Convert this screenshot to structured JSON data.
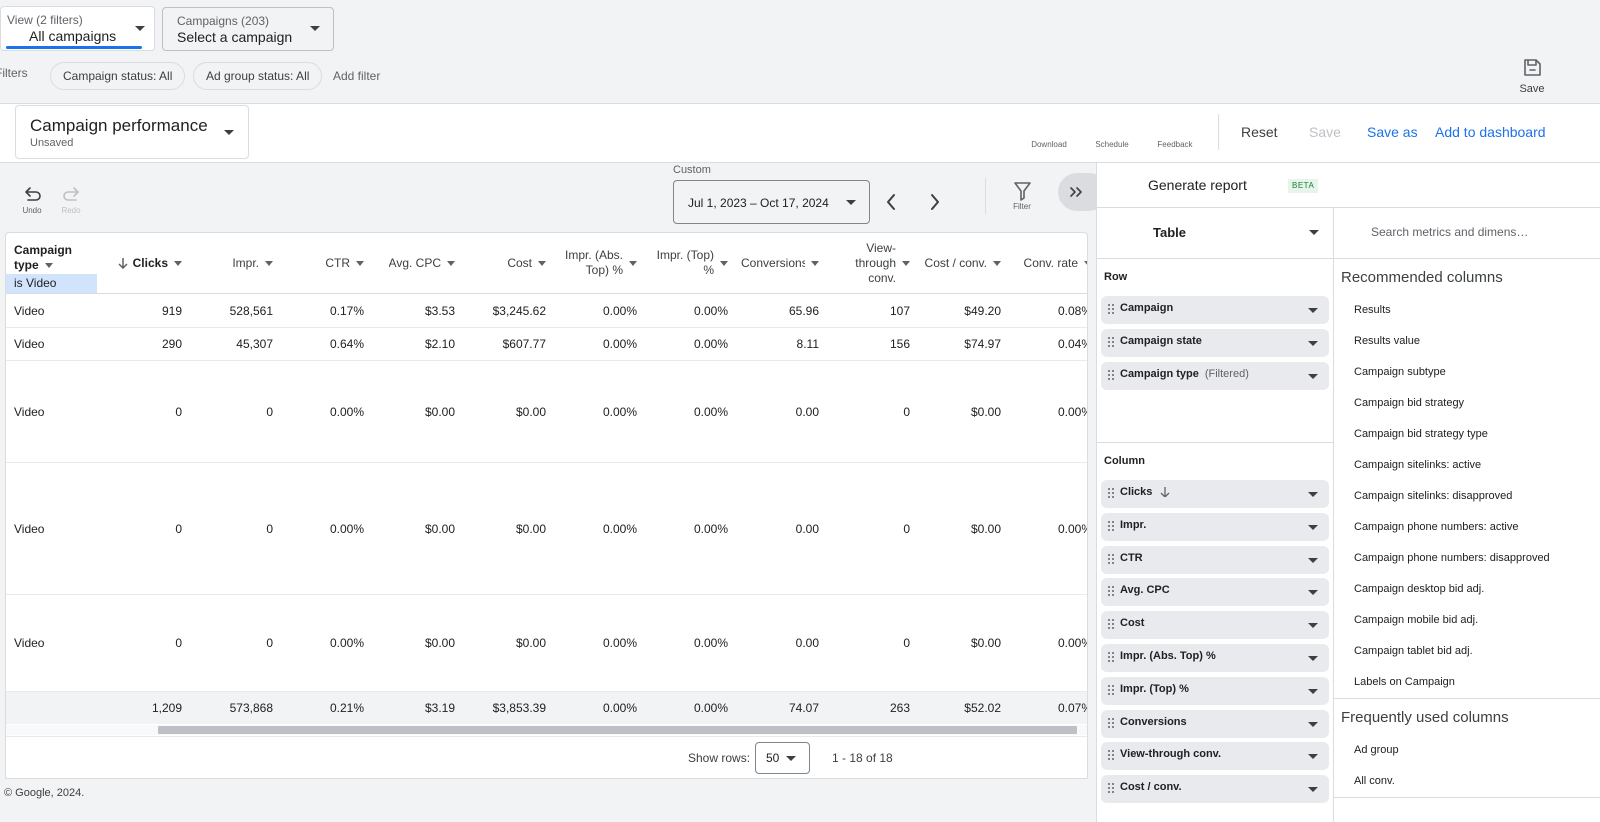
{
  "top_bar": {
    "view_label": "View (2 filters)",
    "view_value": "All campaigns",
    "campaigns_label": "Campaigns (203)",
    "campaigns_value": "Select a campaign",
    "save": "Save"
  },
  "filters": {
    "label": "Filters",
    "chips": [
      "Campaign status: All",
      "Ad group status: All"
    ],
    "add": "Add filter"
  },
  "report": {
    "title": "Campaign performance",
    "status": "Unsaved",
    "actions": [
      "Download",
      "Schedule",
      "Feedback"
    ],
    "reset": "Reset",
    "save": "Save",
    "save_as": "Save as",
    "add_to_dashboard": "Add to dashboard"
  },
  "toolbar": {
    "undo": "Undo",
    "redo": "Redo",
    "date_label": "Custom",
    "date_range": "Jul 1, 2023 – Oct 17, 2024",
    "filter": "Filter"
  },
  "table": {
    "columns": [
      "Campaign type",
      "Clicks",
      "Impr.",
      "CTR",
      "Avg. CPC",
      "Cost",
      "Impr. (Abs. Top) %",
      "Impr. (Top) %",
      "Conversions",
      "View-through conv.",
      "Cost / conv.",
      "Conv. rate"
    ],
    "filter_note": "is Video",
    "rows": [
      [
        "Video",
        "919",
        "528,561",
        "0.17%",
        "$3.53",
        "$3,245.62",
        "0.00%",
        "0.00%",
        "65.96",
        "107",
        "$49.20",
        "0.08%"
      ],
      [
        "Video",
        "290",
        "45,307",
        "0.64%",
        "$2.10",
        "$607.77",
        "0.00%",
        "0.00%",
        "8.11",
        "156",
        "$74.97",
        "0.04%"
      ],
      [
        "Video",
        "0",
        "0",
        "0.00%",
        "$0.00",
        "$0.00",
        "0.00%",
        "0.00%",
        "0.00",
        "0",
        "$0.00",
        "0.00%"
      ],
      [
        "Video",
        "0",
        "0",
        "0.00%",
        "$0.00",
        "$0.00",
        "0.00%",
        "0.00%",
        "0.00",
        "0",
        "$0.00",
        "0.00%"
      ],
      [
        "Video",
        "0",
        "0",
        "0.00%",
        "$0.00",
        "$0.00",
        "0.00%",
        "0.00%",
        "0.00",
        "0",
        "$0.00",
        "0.00%"
      ]
    ],
    "total": [
      "1,209",
      "573,868",
      "0.21%",
      "$3.19",
      "$3,853.39",
      "0.00%",
      "0.00%",
      "74.07",
      "263",
      "$52.02",
      "0.07%"
    ]
  },
  "pagination": {
    "show_rows_label": "Show rows:",
    "show_rows": "50",
    "range": "1 - 18 of 18"
  },
  "footer": "© Google, 2024.",
  "panel": {
    "title": "Generate report",
    "badge": "BETA",
    "view_type": "Table",
    "row_label": "Row",
    "row_items": [
      "Campaign",
      "Campaign state",
      "Campaign type"
    ],
    "row_filtered_note": "(Filtered)",
    "column_label": "Column",
    "column_items": [
      "Clicks",
      "Impr.",
      "CTR",
      "Avg. CPC",
      "Cost",
      "Impr. (Abs. Top) %",
      "Impr. (Top) %",
      "Conversions",
      "View-through conv.",
      "Cost / conv."
    ],
    "search_placeholder": "Search metrics and dimensions",
    "recommended_title": "Recommended columns",
    "recommended": [
      "Results",
      "Results value",
      "Campaign subtype",
      "Campaign bid strategy",
      "Campaign bid strategy type",
      "Campaign sitelinks: active",
      "Campaign sitelinks: disapproved",
      "Campaign phone numbers: active",
      "Campaign phone numbers: disapproved",
      "Campaign desktop bid adj.",
      "Campaign mobile bid adj.",
      "Campaign tablet bid adj.",
      "Labels on Campaign"
    ],
    "frequent_title": "Frequently used columns",
    "frequent": [
      "Ad group",
      "All conv."
    ]
  }
}
